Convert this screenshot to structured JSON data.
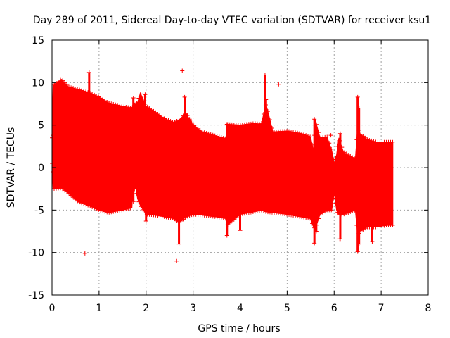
{
  "chart_data": {
    "type": "scatter",
    "title": "Day 289 of 2011, Sidereal Day-to-day VTEC variation (SDTVAR) for receiver ksu1",
    "xlabel": "GPS time / hours",
    "ylabel": "SDTVAR / TECUs",
    "xlim": [
      0,
      8
    ],
    "ylim": [
      -15,
      15
    ],
    "xticks": [
      "0",
      "1",
      "2",
      "3",
      "4",
      "5",
      "6",
      "7",
      "8"
    ],
    "yticks": [
      "15",
      "10",
      "5",
      "0",
      "-5",
      "-10",
      "-15"
    ],
    "xtick_values": [
      0,
      1,
      2,
      3,
      4,
      5,
      6,
      7,
      8
    ],
    "ytick_values": [
      15,
      10,
      5,
      0,
      -5,
      -10,
      -15
    ],
    "grid": true,
    "series_color": "#ff0000",
    "series": [
      {
        "name": "SDTVAR",
        "envelope": [
          {
            "x": 0.0,
            "upper": 3.5,
            "lower": 0.5
          },
          {
            "x": 0.02,
            "upper": 9.6,
            "lower": -2.5
          },
          {
            "x": 0.2,
            "upper": 10.4,
            "lower": -2.4
          },
          {
            "x": 0.35,
            "upper": 9.5,
            "lower": -3.0
          },
          {
            "x": 0.55,
            "upper": 9.2,
            "lower": -4.0
          },
          {
            "x": 0.8,
            "upper": 8.8,
            "lower": -4.5
          },
          {
            "x": 1.0,
            "upper": 8.3,
            "lower": -5.0
          },
          {
            "x": 1.2,
            "upper": 7.6,
            "lower": -5.3
          },
          {
            "x": 1.5,
            "upper": 7.2,
            "lower": -5.0
          },
          {
            "x": 1.7,
            "upper": 7.0,
            "lower": -4.7
          },
          {
            "x": 1.72,
            "upper": 7.2,
            "lower": -2.7
          },
          {
            "x": 1.78,
            "upper": 7.5,
            "lower": -2.4
          },
          {
            "x": 1.82,
            "upper": 7.7,
            "lower": -3.7
          },
          {
            "x": 1.88,
            "upper": 8.8,
            "lower": -4.5
          },
          {
            "x": 2.0,
            "upper": 7.2,
            "lower": -5.5
          },
          {
            "x": 2.2,
            "upper": 6.5,
            "lower": -5.6
          },
          {
            "x": 2.4,
            "upper": 5.7,
            "lower": -5.8
          },
          {
            "x": 2.6,
            "upper": 5.3,
            "lower": -6.0
          },
          {
            "x": 2.7,
            "upper": 5.6,
            "lower": -6.5
          },
          {
            "x": 2.85,
            "upper": 6.4,
            "lower": -5.8
          },
          {
            "x": 3.0,
            "upper": 5.0,
            "lower": -5.5
          },
          {
            "x": 3.2,
            "upper": 4.2,
            "lower": -5.6
          },
          {
            "x": 3.5,
            "upper": 3.7,
            "lower": -5.8
          },
          {
            "x": 3.7,
            "upper": 3.4,
            "lower": -6.0
          },
          {
            "x": 3.72,
            "upper": 5.1,
            "lower": -6.8
          },
          {
            "x": 4.0,
            "upper": 5.0,
            "lower": -5.5
          },
          {
            "x": 4.3,
            "upper": 5.2,
            "lower": -5.2
          },
          {
            "x": 4.45,
            "upper": 5.1,
            "lower": -5.0
          },
          {
            "x": 4.55,
            "upper": 7.5,
            "lower": -5.2
          },
          {
            "x": 4.7,
            "upper": 4.2,
            "lower": -5.3
          },
          {
            "x": 5.0,
            "upper": 4.3,
            "lower": -5.5
          },
          {
            "x": 5.3,
            "upper": 4.0,
            "lower": -5.8
          },
          {
            "x": 5.5,
            "upper": 3.6,
            "lower": -6.0
          },
          {
            "x": 5.56,
            "upper": 2.0,
            "lower": -7.0
          },
          {
            "x": 5.6,
            "upper": 5.6,
            "lower": -7.2
          },
          {
            "x": 5.7,
            "upper": 3.5,
            "lower": -5.5
          },
          {
            "x": 5.85,
            "upper": 3.6,
            "lower": -5.0
          },
          {
            "x": 5.95,
            "upper": 2.0,
            "lower": -5.0
          },
          {
            "x": 6.0,
            "upper": 0.5,
            "lower": -3.0
          },
          {
            "x": 6.05,
            "upper": 1.5,
            "lower": -5.0
          },
          {
            "x": 6.1,
            "upper": 3.5,
            "lower": -5.5
          },
          {
            "x": 6.2,
            "upper": 1.8,
            "lower": -5.5
          },
          {
            "x": 6.45,
            "upper": 1.0,
            "lower": -5.0
          },
          {
            "x": 6.5,
            "upper": 4.8,
            "lower": -8.0
          },
          {
            "x": 6.55,
            "upper": 4.0,
            "lower": -7.5
          },
          {
            "x": 6.7,
            "upper": 3.3,
            "lower": -7.0
          },
          {
            "x": 6.9,
            "upper": 3.0,
            "lower": -7.0
          },
          {
            "x": 7.1,
            "upper": 3.0,
            "lower": -6.8
          },
          {
            "x": 7.25,
            "upper": 3.0,
            "lower": -6.8
          }
        ],
        "spikes": [
          {
            "x": 0.03,
            "upper": 3.8,
            "lower": -0.5
          },
          {
            "x": 0.79,
            "upper": 11.2,
            "lower": 5.0
          },
          {
            "x": 1.73,
            "upper": 8.2,
            "lower": -4.0
          },
          {
            "x": 1.98,
            "upper": 8.6,
            "lower": 5.0
          },
          {
            "x": 2.0,
            "upper": 5.0,
            "lower": -6.3
          },
          {
            "x": 2.7,
            "upper": 3.0,
            "lower": -9.0
          },
          {
            "x": 2.82,
            "upper": 8.3,
            "lower": 4.0
          },
          {
            "x": 3.72,
            "upper": 5.1,
            "lower": -8.0
          },
          {
            "x": 4.0,
            "upper": 0.0,
            "lower": -7.4
          },
          {
            "x": 4.53,
            "upper": 10.9,
            "lower": 3.0
          },
          {
            "x": 4.55,
            "upper": 8.0,
            "lower": 2.0
          },
          {
            "x": 5.58,
            "upper": 5.7,
            "lower": -8.9
          },
          {
            "x": 5.62,
            "upper": 0.0,
            "lower": -7.5
          },
          {
            "x": 6.13,
            "upper": 4.0,
            "lower": -8.4
          },
          {
            "x": 6.5,
            "upper": 8.3,
            "lower": -9.9
          },
          {
            "x": 6.53,
            "upper": 7.0,
            "lower": -9.0
          },
          {
            "x": 6.81,
            "upper": 0.0,
            "lower": -8.7
          }
        ],
        "outliers": [
          {
            "x": 0.7,
            "y": -10.1
          },
          {
            "x": 2.77,
            "y": 11.4
          },
          {
            "x": 2.65,
            "y": -11.0
          },
          {
            "x": 4.82,
            "y": 9.8
          },
          {
            "x": 5.93,
            "y": 3.8
          },
          {
            "x": 6.12,
            "y": -8.4
          }
        ]
      }
    ]
  }
}
